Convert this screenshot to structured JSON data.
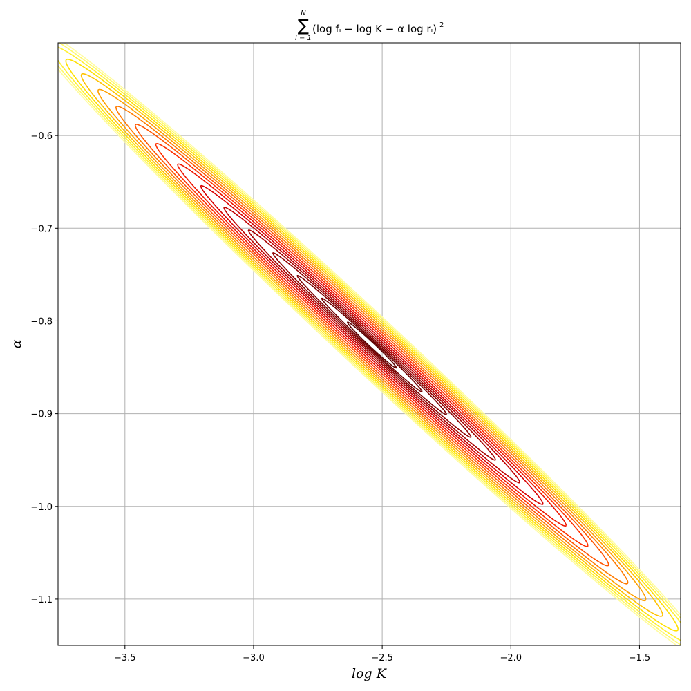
{
  "chart_data": {
    "type": "contour",
    "title": {
      "sum_symbol": "∑",
      "upper_limit": "N",
      "lower_limit": "i = 1",
      "expression": "(log fᵢ − log K − α log rᵢ)",
      "exponent": "2"
    },
    "xlabel": "log K",
    "ylabel": "α",
    "xlim": [
      -3.76,
      -1.34
    ],
    "ylim": [
      -1.15,
      -0.5
    ],
    "xticks": [
      -3.5,
      -3.0,
      -2.5,
      -2.0,
      -1.5
    ],
    "xtick_labels": [
      "−3.5",
      "−3.0",
      "−2.5",
      "−2.0",
      "−1.5"
    ],
    "yticks": [
      -0.6,
      -0.7,
      -0.8,
      -0.9,
      -1.0,
      -1.1
    ],
    "ytick_labels": [
      "−0.6",
      "−0.7",
      "−0.8",
      "−0.9",
      "−1.0",
      "−1.1"
    ],
    "grid": true,
    "colormap": "hot",
    "minimum": {
      "logK": -2.54,
      "alpha": -0.826
    },
    "levels": [
      {
        "halfwidth_x": 0.095,
        "color": "#5a0000"
      },
      {
        "halfwidth_x": 0.195,
        "color": "#6e0000"
      },
      {
        "halfwidth_x": 0.29,
        "color": "#7a0000"
      },
      {
        "halfwidth_x": 0.385,
        "color": "#8e0000"
      },
      {
        "halfwidth_x": 0.48,
        "color": "#a50000"
      },
      {
        "halfwidth_x": 0.575,
        "color": "#bf0000"
      },
      {
        "halfwidth_x": 0.665,
        "color": "#d80000"
      },
      {
        "halfwidth_x": 0.755,
        "color": "#ee1500"
      },
      {
        "halfwidth_x": 0.84,
        "color": "#ff3000"
      },
      {
        "halfwidth_x": 0.92,
        "color": "#ff5500"
      },
      {
        "halfwidth_x": 0.995,
        "color": "#ff7a00"
      },
      {
        "halfwidth_x": 1.065,
        "color": "#ffa000"
      },
      {
        "halfwidth_x": 1.13,
        "color": "#ffc200"
      },
      {
        "halfwidth_x": 1.19,
        "color": "#ffe000"
      },
      {
        "halfwidth_x": 1.245,
        "color": "#fff030"
      },
      {
        "halfwidth_x": 1.295,
        "color": "#fff96a"
      },
      {
        "halfwidth_x": 1.34,
        "color": "#fffca0"
      }
    ],
    "ellipse_slope": -0.2575,
    "ellipse_minor_width": 0.0255
  }
}
